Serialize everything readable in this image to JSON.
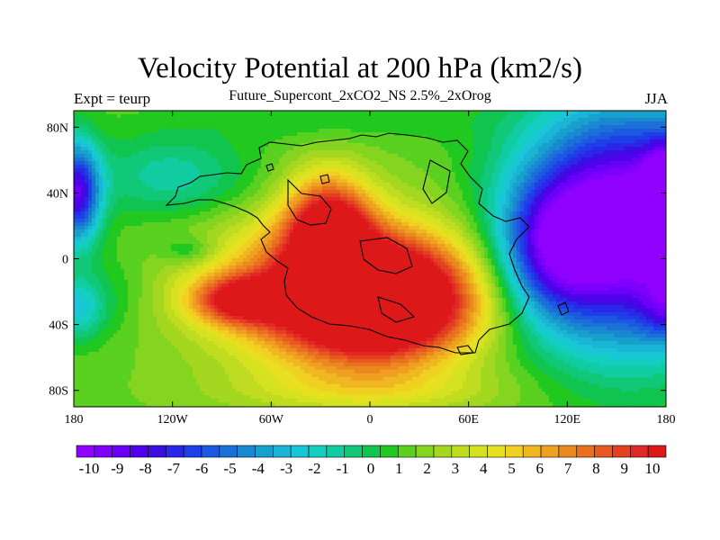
{
  "title": "Velocity Potential at 200 hPa (km2/s)",
  "subtitle": "Future_Supercont_2xCO2_NS 2.5%_2xOrog",
  "left_label": "Expt = teurp",
  "right_label": "JJA",
  "map": {
    "lon_range": [
      -180,
      180
    ],
    "lat_range": [
      -90,
      90
    ],
    "x_ticks": [
      {
        "lon": -180,
        "label": "180"
      },
      {
        "lon": -120,
        "label": "120W"
      },
      {
        "lon": -60,
        "label": "60W"
      },
      {
        "lon": 0,
        "label": "0"
      },
      {
        "lon": 60,
        "label": "60E"
      },
      {
        "lon": 120,
        "label": "120E"
      },
      {
        "lon": 180,
        "label": "180"
      }
    ],
    "y_ticks": [
      {
        "lat": 80,
        "label": "80N"
      },
      {
        "lat": 40,
        "label": "40N"
      },
      {
        "lat": 0,
        "label": "0"
      },
      {
        "lat": -40,
        "label": "40S"
      },
      {
        "lat": -80,
        "label": "80S"
      }
    ],
    "field_features": [
      {
        "lon": -10,
        "lat": -20,
        "value": 11,
        "sx": 55,
        "sy": 30
      },
      {
        "lon": 5,
        "lat": -28,
        "value": 9,
        "sx": 35,
        "sy": 22
      },
      {
        "lon": -25,
        "lat": 20,
        "value": 9,
        "sx": 18,
        "sy": 22
      },
      {
        "lon": -80,
        "lat": -25,
        "value": 7,
        "sx": 20,
        "sy": 10
      },
      {
        "lon": 155,
        "lat": 20,
        "value": -14,
        "sx": 45,
        "sy": 50
      },
      {
        "lon": 110,
        "lat": 5,
        "value": -6,
        "sx": 22,
        "sy": 28
      },
      {
        "lon": -178,
        "lat": 40,
        "value": -10,
        "sx": 10,
        "sy": 22
      },
      {
        "lon": 182,
        "lat": 35,
        "value": -10,
        "sx": 10,
        "sy": 22
      },
      {
        "lon": -178,
        "lat": -30,
        "value": -4,
        "sx": 12,
        "sy": 14
      },
      {
        "lon": 182,
        "lat": -30,
        "value": -4,
        "sx": 12,
        "sy": 14
      },
      {
        "lon": -120,
        "lat": 50,
        "value": -3,
        "sx": 35,
        "sy": 18
      },
      {
        "lon": -110,
        "lat": 5,
        "value": -2,
        "sx": 12,
        "sy": 6
      },
      {
        "lon": -155,
        "lat": -20,
        "value": -1,
        "sx": 15,
        "sy": 20
      },
      {
        "lon": 0,
        "lat": -80,
        "value": 2,
        "sx": 60,
        "sy": 10
      },
      {
        "lon": -30,
        "lat": 85,
        "value": -1,
        "sx": 70,
        "sy": 10
      }
    ],
    "field_base": 1.5
  },
  "colorbar": {
    "colors": [
      "#8f00ff",
      "#7d00ff",
      "#6a00f8",
      "#5000ea",
      "#3a0ee0",
      "#2a28e8",
      "#1e3ee8",
      "#1c58e0",
      "#1a70d6",
      "#1888d0",
      "#18a0cc",
      "#1ab4d4",
      "#18c6d6",
      "#14cfc0",
      "#10cca0",
      "#10c878",
      "#10c450",
      "#20c820",
      "#5ad020",
      "#84d420",
      "#a4d820",
      "#c0dc20",
      "#d4e220",
      "#e6e020",
      "#f0d020",
      "#f0b820",
      "#f0a020",
      "#ec8820",
      "#e87020",
      "#e85820",
      "#e44020",
      "#e02828",
      "#dc1818"
    ],
    "levels": [
      -10,
      -9,
      -8,
      -7,
      -6,
      -5,
      -4,
      -3,
      -2,
      -1,
      0,
      1,
      2,
      3,
      4,
      5,
      6,
      7,
      8,
      9,
      10
    ]
  }
}
